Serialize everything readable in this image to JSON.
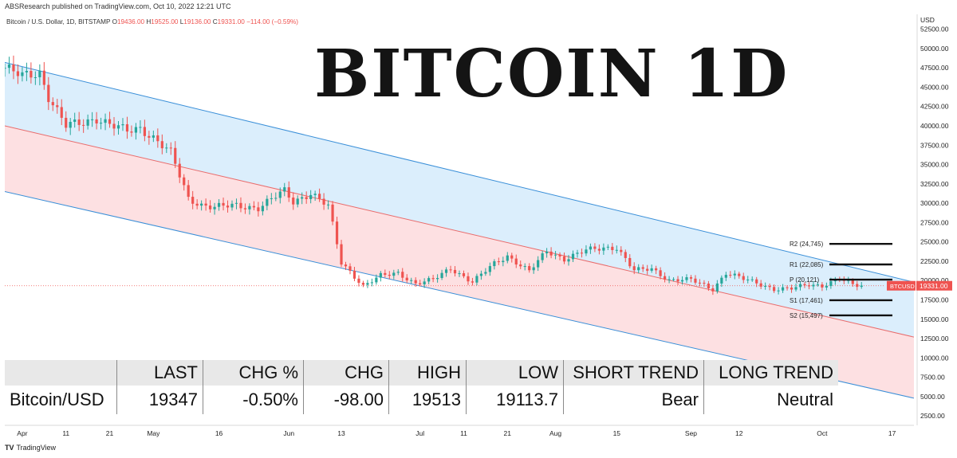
{
  "attribution": "ABSResearch published on TradingView.com, Oct 10, 2022 12:21 UTC",
  "title": "BITCOIN 1D",
  "footer_brand": "TradingView",
  "footer_logo": "TV",
  "colors": {
    "up": "#26a69a",
    "down": "#ef5350",
    "channel_upper_fill": "#dbeefc",
    "channel_lower_fill": "#fde0e2",
    "channel_line": "#3a8fd8",
    "midline": "#e96c6c",
    "price_tag": "#ef5350"
  },
  "chart_data": {
    "type": "candlestick",
    "legend": {
      "symbol": "Bitcoin / U.S. Dollar, 1D, BITSTAMP",
      "o_label": "O",
      "o": "19436.00",
      "h_label": "H",
      "h": "19525.00",
      "l_label": "L",
      "l": "19136.00",
      "c_label": "C",
      "c": "19331.00",
      "chg": "−114.00 (−0.59%)"
    },
    "y_axis": {
      "unit": "USD",
      "range": [
        1700,
        54000
      ],
      "ticks": [
        "2500.00",
        "5000.00",
        "7500.00",
        "10000.00",
        "12500.00",
        "15000.00",
        "17500.00",
        "20000.00",
        "22500.00",
        "25000.00",
        "27500.00",
        "30000.00",
        "32500.00",
        "35000.00",
        "37500.00",
        "40000.00",
        "42500.00",
        "45000.00",
        "47500.00",
        "50000.00",
        "52500.00"
      ]
    },
    "x_axis": {
      "start": "2022-03-28",
      "end": "2022-10-22",
      "ticks": [
        {
          "date": "2022-04-01",
          "label": "Apr"
        },
        {
          "date": "2022-04-11",
          "label": "11"
        },
        {
          "date": "2022-04-21",
          "label": "21"
        },
        {
          "date": "2022-05-01",
          "label": "May"
        },
        {
          "date": "2022-05-16",
          "label": "16"
        },
        {
          "date": "2022-06-01",
          "label": "Jun"
        },
        {
          "date": "2022-06-13",
          "label": "13"
        },
        {
          "date": "2022-07-01",
          "label": "Jul"
        },
        {
          "date": "2022-07-11",
          "label": "11"
        },
        {
          "date": "2022-07-21",
          "label": "21"
        },
        {
          "date": "2022-08-01",
          "label": "Aug"
        },
        {
          "date": "2022-08-15",
          "label": "15"
        },
        {
          "date": "2022-09-01",
          "label": "Sep"
        },
        {
          "date": "2022-09-12",
          "label": "12"
        },
        {
          "date": "2022-10-01",
          "label": "Oct"
        },
        {
          "date": "2022-10-17",
          "label": "17"
        }
      ]
    },
    "close_series": [
      [
        "2022-03-28",
        47500
      ],
      [
        "2022-04-01",
        46400
      ],
      [
        "2022-04-05",
        46900
      ],
      [
        "2022-04-07",
        43800
      ],
      [
        "2022-04-11",
        40000
      ],
      [
        "2022-04-15",
        40400
      ],
      [
        "2022-04-18",
        41000
      ],
      [
        "2022-04-21",
        40200
      ],
      [
        "2022-04-25",
        39300
      ],
      [
        "2022-04-28",
        39700
      ],
      [
        "2022-05-01",
        38500
      ],
      [
        "2022-05-05",
        36500
      ],
      [
        "2022-05-09",
        30600
      ],
      [
        "2022-05-12",
        29800
      ],
      [
        "2022-05-15",
        29500
      ],
      [
        "2022-05-20",
        29700
      ],
      [
        "2022-05-25",
        29400
      ],
      [
        "2022-05-31",
        31600
      ],
      [
        "2022-06-02",
        30200
      ],
      [
        "2022-06-06",
        31300
      ],
      [
        "2022-06-10",
        29600
      ],
      [
        "2022-06-13",
        22300
      ],
      [
        "2022-06-15",
        21200
      ],
      [
        "2022-06-18",
        19300
      ],
      [
        "2022-06-22",
        20600
      ],
      [
        "2022-06-26",
        21000
      ],
      [
        "2022-06-30",
        19600
      ],
      [
        "2022-07-04",
        20100
      ],
      [
        "2022-07-08",
        21600
      ],
      [
        "2022-07-13",
        19800
      ],
      [
        "2022-07-18",
        22200
      ],
      [
        "2022-07-21",
        23200
      ],
      [
        "2022-07-26",
        21200
      ],
      [
        "2022-07-30",
        23800
      ],
      [
        "2022-08-03",
        22800
      ],
      [
        "2022-08-08",
        23900
      ],
      [
        "2022-08-12",
        24200
      ],
      [
        "2022-08-15",
        24300
      ],
      [
        "2022-08-19",
        21300
      ],
      [
        "2022-08-23",
        21500
      ],
      [
        "2022-08-27",
        20100
      ],
      [
        "2022-09-01",
        20100
      ],
      [
        "2022-09-06",
        18900
      ],
      [
        "2022-09-09",
        21000
      ],
      [
        "2022-09-13",
        20200
      ],
      [
        "2022-09-16",
        19700
      ],
      [
        "2022-09-20",
        18900
      ],
      [
        "2022-09-24",
        18950
      ],
      [
        "2022-09-28",
        19500
      ],
      [
        "2022-10-01",
        19350
      ],
      [
        "2022-10-05",
        20200
      ],
      [
        "2022-10-08",
        19450
      ],
      [
        "2022-10-10",
        19331
      ]
    ],
    "channel": {
      "upper": [
        [
          "2022-03-28",
          48200
        ],
        [
          "2022-10-22",
          19800
        ]
      ],
      "mid": [
        [
          "2022-03-28",
          40000
        ],
        [
          "2022-10-22",
          12700
        ]
      ],
      "lower": [
        [
          "2022-03-28",
          31500
        ],
        [
          "2022-10-22",
          4800
        ]
      ]
    },
    "pivots": [
      {
        "label": "R2 (24,745)",
        "value": 24745
      },
      {
        "label": "R1 (22,085)",
        "value": 22085
      },
      {
        "label": "P (20,121)",
        "value": 20121
      },
      {
        "label": "S1 (17,461)",
        "value": 17461
      },
      {
        "label": "S2 (15,497)",
        "value": 15497
      }
    ],
    "last_price": {
      "symbol": "BTCUSD",
      "value": 19331,
      "label": "19331.00"
    }
  },
  "table": {
    "headers": [
      "",
      "LAST",
      "CHG %",
      "CHG",
      "HIGH",
      "LOW",
      "SHORT TREND",
      "LONG TREND"
    ],
    "row": [
      "Bitcoin/USD",
      "19347",
      "-0.50%",
      "-98.00",
      "19513",
      "19113.7",
      "Bear",
      "Neutral"
    ]
  }
}
